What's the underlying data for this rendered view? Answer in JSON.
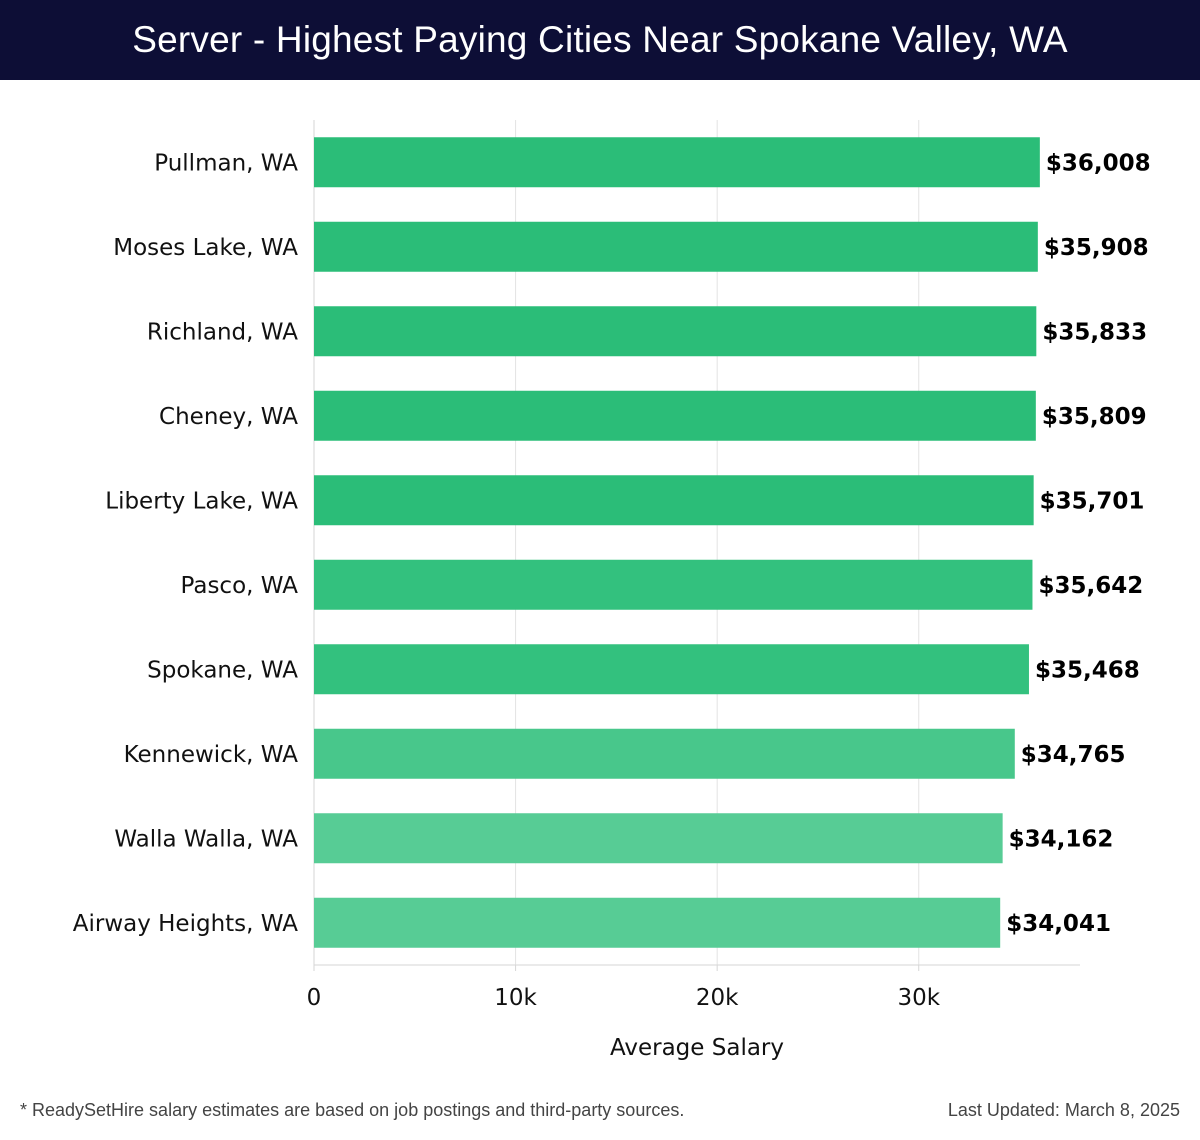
{
  "title": "Server - Highest Paying Cities Near Spokane Valley, WA",
  "chart_data": {
    "type": "bar",
    "orientation": "horizontal",
    "categories": [
      "Pullman, WA",
      "Moses Lake, WA",
      "Richland, WA",
      "Cheney, WA",
      "Liberty Lake, WA",
      "Pasco, WA",
      "Spokane, WA",
      "Kennewick, WA",
      "Walla Walla, WA",
      "Airway Heights, WA"
    ],
    "values": [
      36008,
      35908,
      35833,
      35809,
      35701,
      35642,
      35468,
      34765,
      34162,
      34041
    ],
    "value_labels": [
      "$36,008",
      "$35,908",
      "$35,833",
      "$35,809",
      "$35,701",
      "$35,642",
      "$35,468",
      "$34,765",
      "$34,162",
      "$34,041"
    ],
    "bar_colors": [
      "#2bbd78",
      "#2bbd78",
      "#2bbd78",
      "#2bbd78",
      "#2bbd78",
      "#33c17e",
      "#33c17e",
      "#48c78b",
      "#57cc95",
      "#57cc95"
    ],
    "xlabel": "Average Salary",
    "xlim": [
      0,
      38000
    ],
    "xticks": [
      0,
      10000,
      20000,
      30000
    ],
    "xtick_labels": [
      "0",
      "10k",
      "20k",
      "30k"
    ],
    "grid": "vertical"
  },
  "footer": {
    "note": "* ReadySetHire salary estimates are based on job postings and third-party sources.",
    "updated": "Last Updated: March 8, 2025"
  }
}
